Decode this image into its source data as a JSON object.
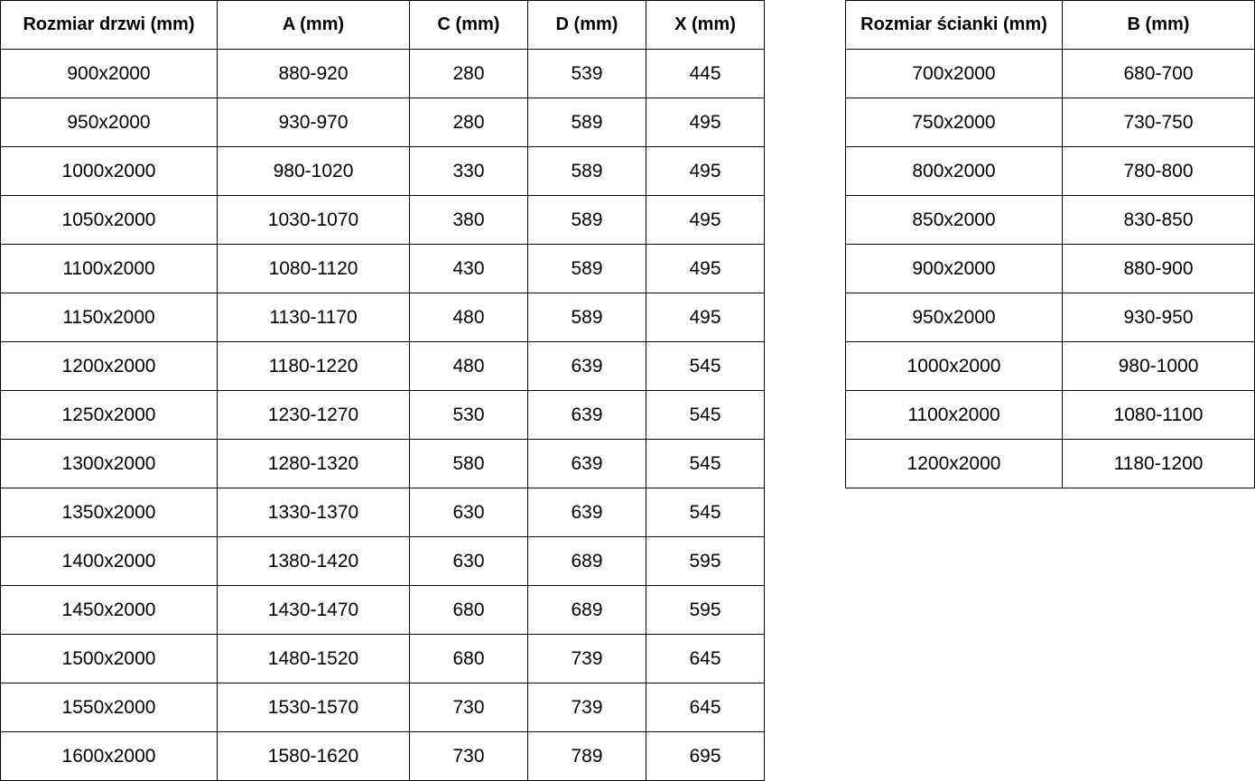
{
  "tables": [
    {
      "header": [
        "Rozmiar drzwi (mm)",
        "A (mm)",
        "C (mm)",
        "D (mm)",
        "X (mm)"
      ],
      "rows": [
        [
          "900x2000",
          "880-920",
          "280",
          "539",
          "445"
        ],
        [
          "950x2000",
          "930-970",
          "280",
          "589",
          "495"
        ],
        [
          "1000x2000",
          "980-1020",
          "330",
          "589",
          "495"
        ],
        [
          "1050x2000",
          "1030-1070",
          "380",
          "589",
          "495"
        ],
        [
          "1100x2000",
          "1080-1120",
          "430",
          "589",
          "495"
        ],
        [
          "1150x2000",
          "1130-1170",
          "480",
          "589",
          "495"
        ],
        [
          "1200x2000",
          "1180-1220",
          "480",
          "639",
          "545"
        ],
        [
          "1250x2000",
          "1230-1270",
          "530",
          "639",
          "545"
        ],
        [
          "1300x2000",
          "1280-1320",
          "580",
          "639",
          "545"
        ],
        [
          "1350x2000",
          "1330-1370",
          "630",
          "639",
          "545"
        ],
        [
          "1400x2000",
          "1380-1420",
          "630",
          "689",
          "595"
        ],
        [
          "1450x2000",
          "1430-1470",
          "680",
          "689",
          "595"
        ],
        [
          "1500x2000",
          "1480-1520",
          "680",
          "739",
          "645"
        ],
        [
          "1550x2000",
          "1530-1570",
          "730",
          "739",
          "645"
        ],
        [
          "1600x2000",
          "1580-1620",
          "730",
          "789",
          "695"
        ]
      ]
    },
    {
      "header": [
        "Rozmiar ścianki (mm)",
        "B (mm)"
      ],
      "rows": [
        [
          "700x2000",
          "680-700"
        ],
        [
          "750x2000",
          "730-750"
        ],
        [
          "800x2000",
          "780-800"
        ],
        [
          "850x2000",
          "830-850"
        ],
        [
          "900x2000",
          "880-900"
        ],
        [
          "950x2000",
          "930-950"
        ],
        [
          "1000x2000",
          "980-1000"
        ],
        [
          "1100x2000",
          "1080-1100"
        ],
        [
          "1200x2000",
          "1180-1200"
        ]
      ]
    }
  ]
}
